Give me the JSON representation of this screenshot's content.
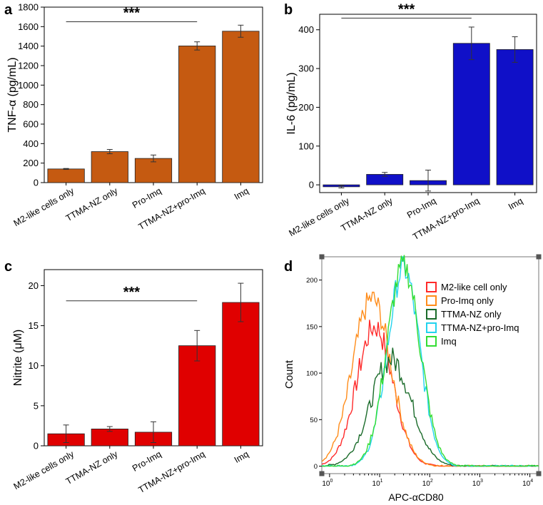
{
  "panels": {
    "a": {
      "label": "a"
    },
    "b": {
      "label": "b"
    },
    "c": {
      "label": "c"
    },
    "d": {
      "label": "d"
    }
  },
  "chart_data": [
    {
      "id": "a",
      "type": "bar",
      "categories": [
        "M2-like cells only",
        "TTMA-NZ only",
        "Pro-Imq",
        "TTMA-NZ+pro-Imq",
        "Imq"
      ],
      "values": [
        140,
        318,
        248,
        1402,
        1553
      ],
      "errors": [
        5,
        22,
        35,
        42,
        62
      ],
      "ylabel": "TNF-α (pg/mL)",
      "xlabel": "",
      "ylim": [
        0,
        1800
      ],
      "yticks": [
        0,
        200,
        400,
        600,
        800,
        1000,
        1200,
        1400,
        1600,
        1800
      ],
      "color": "#C55A11",
      "significance": {
        "label": "***",
        "from": 0,
        "to": 3,
        "y": 1650
      }
    },
    {
      "id": "b",
      "type": "bar",
      "categories": [
        "M2-like cells only",
        "TTMA-NZ only",
        "Pro-Imq",
        "TTMA-NZ+pro-Imq",
        "Imq"
      ],
      "values": [
        -5,
        27,
        11,
        365,
        349
      ],
      "errors": [
        3,
        5,
        27,
        42,
        33
      ],
      "ylabel": "IL-6 (pg/mL)",
      "xlabel": "",
      "ylim": [
        -20,
        440
      ],
      "yticks": [
        0,
        100,
        200,
        300,
        400
      ],
      "color": "#1010C8",
      "significance": {
        "label": "***",
        "from": 0,
        "to": 3,
        "y": 430
      }
    },
    {
      "id": "c",
      "type": "bar",
      "categories": [
        "M2-like cells only",
        "TTMA-NZ only",
        "Pro-Imq",
        "TTMA-NZ+pro-Imq",
        "Imq"
      ],
      "values": [
        1.5,
        2.1,
        1.7,
        12.5,
        17.9
      ],
      "errors": [
        1.1,
        0.3,
        1.3,
        1.9,
        2.4
      ],
      "ylabel": "Nitrite (μM)",
      "xlabel": "",
      "ylim": [
        0,
        22
      ],
      "yticks": [
        0,
        5,
        10,
        15,
        20
      ],
      "color": "#E00000",
      "significance": {
        "label": "***",
        "from": 0,
        "to": 3,
        "y": 18.1
      }
    },
    {
      "id": "d",
      "type": "line",
      "xlabel": "APC-αCD80",
      "ylabel": "Count",
      "xscale": "log",
      "xlim": [
        0.7,
        15000
      ],
      "ylim": [
        -8,
        225
      ],
      "xticks": [
        {
          "v": 1,
          "base": "10",
          "exp": "0"
        },
        {
          "v": 10,
          "base": "10",
          "exp": "1"
        },
        {
          "v": 100,
          "base": "10",
          "exp": "2"
        },
        {
          "v": 1000,
          "base": "10",
          "exp": "3"
        },
        {
          "v": 10000,
          "base": "10",
          "exp": "4"
        }
      ],
      "yticks": [
        0,
        50,
        100,
        150,
        200
      ],
      "legend_position": "top-right",
      "series": [
        {
          "name": "M2-like cell only",
          "color": "#FF2A2A",
          "peak_x": 8,
          "peak_y": 150,
          "sigma": 0.36
        },
        {
          "name": "Pro-Imq only",
          "color": "#FF8C1A",
          "peak_x": 7,
          "peak_y": 180,
          "sigma": 0.38
        },
        {
          "name": "TTMA-NZ only",
          "color": "#1A6B2A",
          "peak_x": 17,
          "peak_y": 115,
          "sigma": 0.4
        },
        {
          "name": "TTMA-NZ+pro-Imq",
          "color": "#22D3EE",
          "peak_x": 30,
          "peak_y": 212,
          "sigma": 0.32
        },
        {
          "name": "Imq",
          "color": "#33DD33",
          "peak_x": 30,
          "peak_y": 215,
          "sigma": 0.33
        }
      ]
    }
  ]
}
